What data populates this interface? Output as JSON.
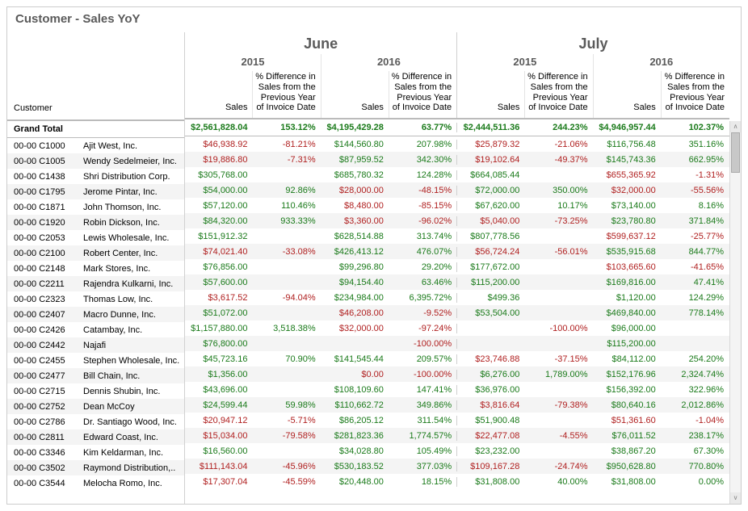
{
  "title": "Customer - Sales YoY",
  "columns": {
    "customer_label": "Customer",
    "months": [
      "June",
      "July"
    ],
    "years": [
      "2015",
      "2016",
      "2015",
      "2016"
    ],
    "metrics": {
      "sales": "Sales",
      "pct_diff": "% Difference in Sales from the Previous Year of Invoice Date"
    }
  },
  "colors": {
    "positive": "#1a7a1a",
    "negative": "#b02020",
    "header_text": "#5a5a5a",
    "alt_row": "#f4f4f4",
    "border": "#d0d0d0"
  },
  "grand_total": {
    "label": "Grand Total",
    "cells": [
      {
        "v": "$2,561,828.04",
        "c": "pos"
      },
      {
        "v": "153.12%",
        "c": "pos"
      },
      {
        "v": "$4,195,429.28",
        "c": "pos"
      },
      {
        "v": "63.77%",
        "c": "pos"
      },
      {
        "v": "$2,444,511.36",
        "c": "pos"
      },
      {
        "v": "244.23%",
        "c": "pos"
      },
      {
        "v": "$4,946,957.44",
        "c": "pos"
      },
      {
        "v": "102.37%",
        "c": "pos"
      }
    ]
  },
  "rows": [
    {
      "code": "00-00  C1000",
      "name": "Ajit West, Inc.",
      "cells": [
        {
          "v": "$46,938.92",
          "c": "neg"
        },
        {
          "v": "-81.21%",
          "c": "neg"
        },
        {
          "v": "$144,560.80",
          "c": "pos"
        },
        {
          "v": "207.98%",
          "c": "pos"
        },
        {
          "v": "$25,879.32",
          "c": "neg"
        },
        {
          "v": "-21.06%",
          "c": "neg"
        },
        {
          "v": "$116,756.48",
          "c": "pos"
        },
        {
          "v": "351.16%",
          "c": "pos"
        }
      ]
    },
    {
      "code": "00-00  C1005",
      "name": "Wendy Sedelmeier, Inc.",
      "cells": [
        {
          "v": "$19,886.80",
          "c": "neg"
        },
        {
          "v": "-7.31%",
          "c": "neg"
        },
        {
          "v": "$87,959.52",
          "c": "pos"
        },
        {
          "v": "342.30%",
          "c": "pos"
        },
        {
          "v": "$19,102.64",
          "c": "neg"
        },
        {
          "v": "-49.37%",
          "c": "neg"
        },
        {
          "v": "$145,743.36",
          "c": "pos"
        },
        {
          "v": "662.95%",
          "c": "pos"
        }
      ]
    },
    {
      "code": "00-00  C1438",
      "name": "Shri Distribution Corp.",
      "cells": [
        {
          "v": "$305,768.00",
          "c": "pos"
        },
        {
          "v": "",
          "c": ""
        },
        {
          "v": "$685,780.32",
          "c": "pos"
        },
        {
          "v": "124.28%",
          "c": "pos"
        },
        {
          "v": "$664,085.44",
          "c": "pos"
        },
        {
          "v": "",
          "c": ""
        },
        {
          "v": "$655,365.92",
          "c": "neg"
        },
        {
          "v": "-1.31%",
          "c": "neg"
        }
      ]
    },
    {
      "code": "00-00  C1795",
      "name": "Jerome Pintar, Inc.",
      "cells": [
        {
          "v": "$54,000.00",
          "c": "pos"
        },
        {
          "v": "92.86%",
          "c": "pos"
        },
        {
          "v": "$28,000.00",
          "c": "neg"
        },
        {
          "v": "-48.15%",
          "c": "neg"
        },
        {
          "v": "$72,000.00",
          "c": "pos"
        },
        {
          "v": "350.00%",
          "c": "pos"
        },
        {
          "v": "$32,000.00",
          "c": "neg"
        },
        {
          "v": "-55.56%",
          "c": "neg"
        }
      ]
    },
    {
      "code": "00-00  C1871",
      "name": "John Thomson, Inc.",
      "cells": [
        {
          "v": "$57,120.00",
          "c": "pos"
        },
        {
          "v": "110.46%",
          "c": "pos"
        },
        {
          "v": "$8,480.00",
          "c": "neg"
        },
        {
          "v": "-85.15%",
          "c": "neg"
        },
        {
          "v": "$67,620.00",
          "c": "pos"
        },
        {
          "v": "10.17%",
          "c": "pos"
        },
        {
          "v": "$73,140.00",
          "c": "pos"
        },
        {
          "v": "8.16%",
          "c": "pos"
        }
      ]
    },
    {
      "code": "00-00  C1920",
      "name": "Robin Dickson, Inc.",
      "cells": [
        {
          "v": "$84,320.00",
          "c": "pos"
        },
        {
          "v": "933.33%",
          "c": "pos"
        },
        {
          "v": "$3,360.00",
          "c": "neg"
        },
        {
          "v": "-96.02%",
          "c": "neg"
        },
        {
          "v": "$5,040.00",
          "c": "neg"
        },
        {
          "v": "-73.25%",
          "c": "neg"
        },
        {
          "v": "$23,780.80",
          "c": "pos"
        },
        {
          "v": "371.84%",
          "c": "pos"
        }
      ]
    },
    {
      "code": "00-00  C2053",
      "name": "Lewis Wholesale, Inc.",
      "cells": [
        {
          "v": "$151,912.32",
          "c": "pos"
        },
        {
          "v": "",
          "c": ""
        },
        {
          "v": "$628,514.88",
          "c": "pos"
        },
        {
          "v": "313.74%",
          "c": "pos"
        },
        {
          "v": "$807,778.56",
          "c": "pos"
        },
        {
          "v": "",
          "c": ""
        },
        {
          "v": "$599,637.12",
          "c": "neg"
        },
        {
          "v": "-25.77%",
          "c": "neg"
        }
      ]
    },
    {
      "code": "00-00  C2100",
      "name": "Robert Center, Inc.",
      "cells": [
        {
          "v": "$74,021.40",
          "c": "neg"
        },
        {
          "v": "-33.08%",
          "c": "neg"
        },
        {
          "v": "$426,413.12",
          "c": "pos"
        },
        {
          "v": "476.07%",
          "c": "pos"
        },
        {
          "v": "$56,724.24",
          "c": "neg"
        },
        {
          "v": "-56.01%",
          "c": "neg"
        },
        {
          "v": "$535,915.68",
          "c": "pos"
        },
        {
          "v": "844.77%",
          "c": "pos"
        }
      ]
    },
    {
      "code": "00-00  C2148",
      "name": "Mark Stores, Inc.",
      "cells": [
        {
          "v": "$76,856.00",
          "c": "pos"
        },
        {
          "v": "",
          "c": ""
        },
        {
          "v": "$99,296.80",
          "c": "pos"
        },
        {
          "v": "29.20%",
          "c": "pos"
        },
        {
          "v": "$177,672.00",
          "c": "pos"
        },
        {
          "v": "",
          "c": ""
        },
        {
          "v": "$103,665.60",
          "c": "neg"
        },
        {
          "v": "-41.65%",
          "c": "neg"
        }
      ]
    },
    {
      "code": "00-00  C2211",
      "name": "Rajendra Kulkarni, Inc.",
      "cells": [
        {
          "v": "$57,600.00",
          "c": "pos"
        },
        {
          "v": "",
          "c": ""
        },
        {
          "v": "$94,154.40",
          "c": "pos"
        },
        {
          "v": "63.46%",
          "c": "pos"
        },
        {
          "v": "$115,200.00",
          "c": "pos"
        },
        {
          "v": "",
          "c": ""
        },
        {
          "v": "$169,816.00",
          "c": "pos"
        },
        {
          "v": "47.41%",
          "c": "pos"
        }
      ]
    },
    {
      "code": "00-00  C2323",
      "name": "Thomas Low, Inc.",
      "cells": [
        {
          "v": "$3,617.52",
          "c": "neg"
        },
        {
          "v": "-94.04%",
          "c": "neg"
        },
        {
          "v": "$234,984.00",
          "c": "pos"
        },
        {
          "v": "6,395.72%",
          "c": "pos"
        },
        {
          "v": "$499.36",
          "c": "pos"
        },
        {
          "v": "",
          "c": ""
        },
        {
          "v": "$1,120.00",
          "c": "pos"
        },
        {
          "v": "124.29%",
          "c": "pos"
        }
      ]
    },
    {
      "code": "00-00  C2407",
      "name": "Macro Dunne, Inc.",
      "cells": [
        {
          "v": "$51,072.00",
          "c": "pos"
        },
        {
          "v": "",
          "c": ""
        },
        {
          "v": "$46,208.00",
          "c": "neg"
        },
        {
          "v": "-9.52%",
          "c": "neg"
        },
        {
          "v": "$53,504.00",
          "c": "pos"
        },
        {
          "v": "",
          "c": ""
        },
        {
          "v": "$469,840.00",
          "c": "pos"
        },
        {
          "v": "778.14%",
          "c": "pos"
        }
      ]
    },
    {
      "code": "00-00  C2426",
      "name": "Catambay, Inc.",
      "cells": [
        {
          "v": "$1,157,880.00",
          "c": "pos"
        },
        {
          "v": "3,518.38%",
          "c": "pos"
        },
        {
          "v": "$32,000.00",
          "c": "neg"
        },
        {
          "v": "-97.24%",
          "c": "neg"
        },
        {
          "v": "",
          "c": ""
        },
        {
          "v": "-100.00%",
          "c": "neg"
        },
        {
          "v": "$96,000.00",
          "c": "pos"
        },
        {
          "v": "",
          "c": ""
        }
      ]
    },
    {
      "code": "00-00  C2442",
      "name": "Najafi",
      "cells": [
        {
          "v": "$76,800.00",
          "c": "pos"
        },
        {
          "v": "",
          "c": ""
        },
        {
          "v": "",
          "c": ""
        },
        {
          "v": "-100.00%",
          "c": "neg"
        },
        {
          "v": "",
          "c": ""
        },
        {
          "v": "",
          "c": ""
        },
        {
          "v": "$115,200.00",
          "c": "pos"
        },
        {
          "v": "",
          "c": ""
        }
      ]
    },
    {
      "code": "00-00  C2455",
      "name": "Stephen Wholesale, Inc.",
      "cells": [
        {
          "v": "$45,723.16",
          "c": "pos"
        },
        {
          "v": "70.90%",
          "c": "pos"
        },
        {
          "v": "$141,545.44",
          "c": "pos"
        },
        {
          "v": "209.57%",
          "c": "pos"
        },
        {
          "v": "$23,746.88",
          "c": "neg"
        },
        {
          "v": "-37.15%",
          "c": "neg"
        },
        {
          "v": "$84,112.00",
          "c": "pos"
        },
        {
          "v": "254.20%",
          "c": "pos"
        }
      ]
    },
    {
      "code": "00-00  C2477",
      "name": "Bill Chain, Inc.",
      "cells": [
        {
          "v": "$1,356.00",
          "c": "pos"
        },
        {
          "v": "",
          "c": ""
        },
        {
          "v": "$0.00",
          "c": "neg"
        },
        {
          "v": "-100.00%",
          "c": "neg"
        },
        {
          "v": "$6,276.00",
          "c": "pos"
        },
        {
          "v": "1,789.00%",
          "c": "pos"
        },
        {
          "v": "$152,176.96",
          "c": "pos"
        },
        {
          "v": "2,324.74%",
          "c": "pos"
        }
      ]
    },
    {
      "code": "00-00  C2715",
      "name": "Dennis Shubin, Inc.",
      "cells": [
        {
          "v": "$43,696.00",
          "c": "pos"
        },
        {
          "v": "",
          "c": ""
        },
        {
          "v": "$108,109.60",
          "c": "pos"
        },
        {
          "v": "147.41%",
          "c": "pos"
        },
        {
          "v": "$36,976.00",
          "c": "pos"
        },
        {
          "v": "",
          "c": ""
        },
        {
          "v": "$156,392.00",
          "c": "pos"
        },
        {
          "v": "322.96%",
          "c": "pos"
        }
      ]
    },
    {
      "code": "00-00  C2752",
      "name": "Dean McCoy",
      "cells": [
        {
          "v": "$24,599.44",
          "c": "pos"
        },
        {
          "v": "59.98%",
          "c": "pos"
        },
        {
          "v": "$110,662.72",
          "c": "pos"
        },
        {
          "v": "349.86%",
          "c": "pos"
        },
        {
          "v": "$3,816.64",
          "c": "neg"
        },
        {
          "v": "-79.38%",
          "c": "neg"
        },
        {
          "v": "$80,640.16",
          "c": "pos"
        },
        {
          "v": "2,012.86%",
          "c": "pos"
        }
      ]
    },
    {
      "code": "00-00  C2786",
      "name": "Dr. Santiago Wood, Inc.",
      "cells": [
        {
          "v": "$20,947.12",
          "c": "neg"
        },
        {
          "v": "-5.71%",
          "c": "neg"
        },
        {
          "v": "$86,205.12",
          "c": "pos"
        },
        {
          "v": "311.54%",
          "c": "pos"
        },
        {
          "v": "$51,900.48",
          "c": "pos"
        },
        {
          "v": "",
          "c": ""
        },
        {
          "v": "$51,361.60",
          "c": "neg"
        },
        {
          "v": "-1.04%",
          "c": "neg"
        }
      ]
    },
    {
      "code": "00-00  C2811",
      "name": "Edward Coast, Inc.",
      "cells": [
        {
          "v": "$15,034.00",
          "c": "neg"
        },
        {
          "v": "-79.58%",
          "c": "neg"
        },
        {
          "v": "$281,823.36",
          "c": "pos"
        },
        {
          "v": "1,774.57%",
          "c": "pos"
        },
        {
          "v": "$22,477.08",
          "c": "neg"
        },
        {
          "v": "-4.55%",
          "c": "neg"
        },
        {
          "v": "$76,011.52",
          "c": "pos"
        },
        {
          "v": "238.17%",
          "c": "pos"
        }
      ]
    },
    {
      "code": "00-00  C3346",
      "name": "Kim Keldarman, Inc.",
      "cells": [
        {
          "v": "$16,560.00",
          "c": "pos"
        },
        {
          "v": "",
          "c": ""
        },
        {
          "v": "$34,028.80",
          "c": "pos"
        },
        {
          "v": "105.49%",
          "c": "pos"
        },
        {
          "v": "$23,232.00",
          "c": "pos"
        },
        {
          "v": "",
          "c": ""
        },
        {
          "v": "$38,867.20",
          "c": "pos"
        },
        {
          "v": "67.30%",
          "c": "pos"
        }
      ]
    },
    {
      "code": "00-00  C3502",
      "name": "Raymond Distribution,..",
      "cells": [
        {
          "v": "$111,143.04",
          "c": "neg"
        },
        {
          "v": "-45.96%",
          "c": "neg"
        },
        {
          "v": "$530,183.52",
          "c": "pos"
        },
        {
          "v": "377.03%",
          "c": "pos"
        },
        {
          "v": "$109,167.28",
          "c": "neg"
        },
        {
          "v": "-24.74%",
          "c": "neg"
        },
        {
          "v": "$950,628.80",
          "c": "pos"
        },
        {
          "v": "770.80%",
          "c": "pos"
        }
      ]
    },
    {
      "code": "00-00  C3544",
      "name": "Melocha Romo, Inc.",
      "cells": [
        {
          "v": "$17,307.04",
          "c": "neg"
        },
        {
          "v": "-45.59%",
          "c": "neg"
        },
        {
          "v": "$20,448.00",
          "c": "pos"
        },
        {
          "v": "18.15%",
          "c": "pos"
        },
        {
          "v": "$31,808.00",
          "c": "pos"
        },
        {
          "v": "40.00%",
          "c": "pos"
        },
        {
          "v": "$31,808.00",
          "c": "pos"
        },
        {
          "v": "0.00%",
          "c": "pos"
        }
      ]
    }
  ]
}
